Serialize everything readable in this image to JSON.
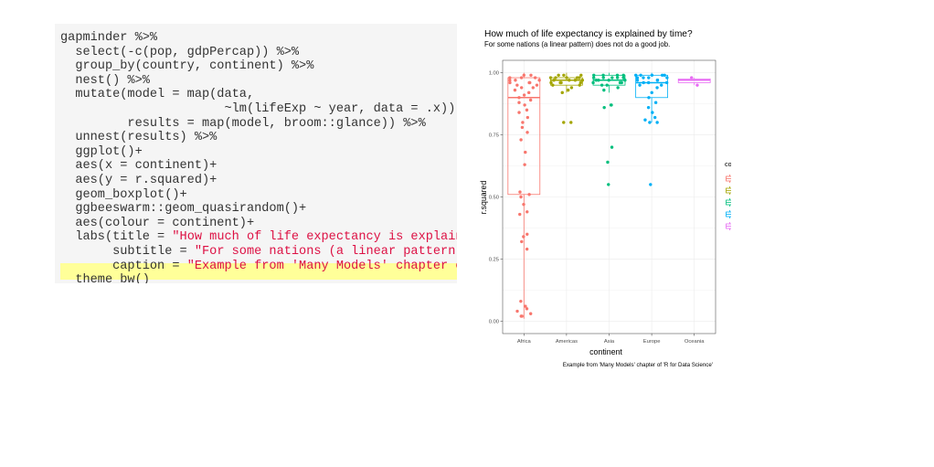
{
  "code": {
    "lines": [
      {
        "text": "gapminder %>%",
        "str": ""
      },
      {
        "text": "  select(-c(pop, gdpPercap)) %>%",
        "str": ""
      },
      {
        "text": "  group_by(country, continent) %>%",
        "str": ""
      },
      {
        "text": "  nest() %>%",
        "str": ""
      },
      {
        "text": "  mutate(model = map(data,",
        "str": ""
      },
      {
        "text": "                      ~lm(lifeExp ~ year, data = .x)),",
        "str": ""
      },
      {
        "text": "         results = map(model, broom::glance)) %>%",
        "str": ""
      },
      {
        "text": "  unnest(results) %>%",
        "str": ""
      },
      {
        "text": "  ggplot()+",
        "str": ""
      },
      {
        "text": "  aes(x = continent)+",
        "str": ""
      },
      {
        "text": "  aes(y = r.squared)+",
        "str": ""
      },
      {
        "text": "  geom_boxplot()+",
        "str": ""
      },
      {
        "text": "  ggbeeswarm::geom_quasirandom()+",
        "str": ""
      },
      {
        "text": "  aes(colour = continent)+",
        "str": ""
      },
      {
        "text": "  labs(title = ",
        "str": "\"How much of life expectancy is explained by time?\","
      },
      {
        "text": "       subtitle = ",
        "str": "\"For some nations (a linear pattern) does not do a good job.\","
      },
      {
        "text": "       caption = ",
        "str": "\"Example from 'Many Models' chapter of 'R for Data Science'\")+"
      },
      {
        "text": "  theme_bw()",
        "str": ""
      }
    ]
  },
  "chart_data": {
    "type": "scatter",
    "title": "How much of life expectancy is explained by time?",
    "subtitle": "For some nations (a linear pattern) does not do a good job.",
    "caption": "Example from 'Many Models' chapter of 'R for Data Science'",
    "xlabel": "continent",
    "ylabel": "r.squared",
    "ylim": [
      0,
      1
    ],
    "yticks": [
      0.0,
      0.25,
      0.5,
      0.75,
      1.0
    ],
    "ytick_labels": [
      "0.00",
      "0.25",
      "0.50",
      "0.75",
      "1.00"
    ],
    "categories": [
      "Africa",
      "Americas",
      "Asia",
      "Europe",
      "Oceania"
    ],
    "legend_title": "continent",
    "legend_position": "right",
    "grid": true,
    "series": [
      {
        "name": "Africa",
        "color": "#F8766D",
        "box": {
          "q1": 0.51,
          "median": 0.9,
          "q3": 0.98,
          "lower": 0.01,
          "upper": 1.0
        },
        "points": [
          0.99,
          0.99,
          0.98,
          0.98,
          0.98,
          0.97,
          0.97,
          0.97,
          0.96,
          0.96,
          0.96,
          0.95,
          0.95,
          0.94,
          0.94,
          0.93,
          0.92,
          0.91,
          0.9,
          0.89,
          0.88,
          0.87,
          0.85,
          0.84,
          0.82,
          0.8,
          0.78,
          0.76,
          0.73,
          0.68,
          0.63,
          0.52,
          0.51,
          0.5,
          0.47,
          0.44,
          0.43,
          0.35,
          0.34,
          0.32,
          0.29,
          0.08,
          0.06,
          0.05,
          0.04,
          0.03,
          0.02,
          0.02
        ]
      },
      {
        "name": "Americas",
        "color": "#A3A500",
        "box": {
          "q1": 0.95,
          "median": 0.97,
          "q3": 0.98,
          "lower": 0.92,
          "upper": 1.0
        },
        "points": [
          0.99,
          0.99,
          0.99,
          0.98,
          0.98,
          0.98,
          0.98,
          0.98,
          0.97,
          0.97,
          0.97,
          0.97,
          0.96,
          0.96,
          0.96,
          0.96,
          0.95,
          0.95,
          0.94,
          0.93,
          0.92,
          0.8,
          0.8
        ]
      },
      {
        "name": "Asia",
        "color": "#00BF7D",
        "box": {
          "q1": 0.95,
          "median": 0.97,
          "q3": 0.99,
          "lower": 0.92,
          "upper": 1.0
        },
        "points": [
          0.99,
          0.99,
          0.99,
          0.99,
          0.98,
          0.98,
          0.98,
          0.98,
          0.98,
          0.97,
          0.97,
          0.97,
          0.97,
          0.96,
          0.96,
          0.96,
          0.95,
          0.95,
          0.94,
          0.93,
          0.87,
          0.87,
          0.86,
          0.7,
          0.64,
          0.55
        ]
      },
      {
        "name": "Europe",
        "color": "#00B0F6",
        "box": {
          "q1": 0.9,
          "median": 0.96,
          "q3": 0.99,
          "lower": 0.8,
          "upper": 1.0
        },
        "points": [
          0.99,
          0.99,
          0.99,
          0.99,
          0.99,
          0.98,
          0.98,
          0.98,
          0.98,
          0.97,
          0.97,
          0.97,
          0.96,
          0.96,
          0.96,
          0.95,
          0.95,
          0.94,
          0.92,
          0.9,
          0.88,
          0.86,
          0.84,
          0.82,
          0.81,
          0.8,
          0.8,
          0.55
        ]
      },
      {
        "name": "Oceania",
        "color": "#E76BF3",
        "box": {
          "q1": 0.96,
          "median": 0.97,
          "q3": 0.975,
          "lower": 0.95,
          "upper": 0.98
        },
        "points": [
          0.98,
          0.95
        ]
      }
    ]
  }
}
